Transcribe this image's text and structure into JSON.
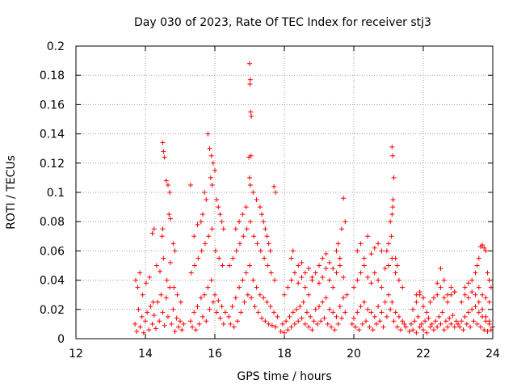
{
  "chart_data": {
    "type": "scatter",
    "title": "Day 030 of 2023, Rate Of TEC Index for receiver stj3",
    "xlabel": "GPS time / hours",
    "ylabel": "ROTI / TECUs",
    "xlim": [
      12,
      24
    ],
    "ylim": [
      0,
      0.2
    ],
    "x_ticks": [
      12,
      14,
      16,
      18,
      20,
      22,
      24
    ],
    "x_tick_labels": [
      "12",
      "14",
      "16",
      "18",
      "20",
      "22",
      "24"
    ],
    "y_ticks": [
      0,
      0.02,
      0.04,
      0.06,
      0.08,
      0.1,
      0.12,
      0.14,
      0.16,
      0.18,
      0.2
    ],
    "y_tick_labels": [
      "0",
      "0.02",
      "0.04",
      "0.06",
      "0.08",
      "0.1",
      "0.12",
      "0.14",
      "0.16",
      "0.18",
      "0.2"
    ],
    "grid": true,
    "marker": "+",
    "color": "#ff0000",
    "series": [
      {
        "x": [
          13.7,
          13.75,
          13.8,
          13.85,
          13.9,
          13.95,
          14.0,
          14.05,
          14.1,
          14.15,
          14.2,
          14.25,
          14.3,
          14.35,
          14.4,
          14.45,
          14.5,
          14.55,
          14.6,
          14.65,
          14.7,
          14.75,
          14.8,
          14.85,
          14.9,
          14.95,
          15.0,
          15.05,
          15.1,
          13.72,
          13.78,
          13.84,
          13.92,
          14.02,
          14.12,
          14.22,
          14.32,
          14.42,
          14.52,
          14.62,
          14.72,
          14.82,
          14.92,
          15.02,
          14.5,
          14.52,
          14.55,
          14.6,
          14.65,
          14.7,
          14.68,
          14.72,
          14.5,
          14.48,
          14.25,
          14.2,
          14.8,
          14.85,
          15.3,
          15.35,
          15.4,
          15.45,
          15.5,
          15.55,
          15.6,
          15.65,
          15.7,
          15.75,
          15.8,
          15.85,
          15.9,
          15.95,
          16.0,
          16.05,
          16.1,
          16.15,
          16.2,
          16.25,
          16.3,
          15.32,
          15.42,
          15.52,
          15.62,
          15.72,
          15.82,
          15.92,
          16.02,
          16.12,
          16.22,
          15.8,
          15.85,
          15.9,
          15.95,
          16.0,
          15.88,
          15.92,
          16.05,
          16.1,
          15.7,
          15.75,
          15.65,
          15.6,
          15.5,
          15.4,
          15.3,
          16.15,
          16.2,
          16.25,
          16.4,
          16.45,
          16.5,
          16.55,
          16.6,
          16.65,
          16.7,
          16.75,
          16.8,
          16.85,
          16.9,
          16.95,
          17.0,
          17.05,
          17.1,
          17.15,
          17.2,
          17.25,
          17.3,
          17.35,
          17.4,
          17.45,
          17.5,
          17.55,
          17.6,
          17.65,
          17.7,
          17.75,
          17.8,
          16.42,
          16.52,
          16.62,
          16.72,
          16.82,
          16.92,
          17.02,
          17.12,
          17.22,
          17.32,
          17.42,
          17.52,
          17.62,
          17.72,
          17.0,
          17.02,
          17.01,
          17.03,
          17.05,
          17.04,
          16.98,
          17.0,
          17.02,
          16.9,
          16.8,
          16.7,
          16.6,
          17.1,
          17.2,
          17.3,
          17.35,
          17.4,
          17.45,
          17.5,
          17.55,
          17.6,
          17.7,
          17.75,
          17.9,
          17.95,
          18.0,
          18.05,
          18.1,
          18.15,
          18.2,
          18.25,
          18.3,
          18.35,
          18.4,
          18.45,
          18.5,
          18.55,
          18.6,
          18.65,
          18.7,
          18.75,
          18.8,
          18.85,
          18.9,
          18.95,
          19.0,
          19.05,
          19.1,
          19.15,
          19.2,
          19.25,
          19.3,
          19.35,
          19.4,
          19.45,
          19.5,
          19.55,
          19.6,
          19.65,
          19.7,
          19.75,
          19.8,
          18.0,
          18.1,
          18.2,
          18.3,
          18.4,
          18.5,
          18.6,
          18.7,
          18.8,
          18.9,
          19.0,
          19.1,
          19.2,
          19.3,
          19.4,
          19.5,
          19.6,
          19.7,
          18.2,
          18.25,
          18.4,
          18.5,
          18.6,
          18.7,
          18.8,
          19.0,
          19.1,
          19.2,
          19.3,
          19.4,
          19.5,
          19.55,
          19.6,
          19.65,
          19.7,
          19.75,
          19.95,
          20.0,
          20.05,
          20.1,
          20.15,
          20.2,
          20.25,
          20.3,
          20.35,
          20.4,
          20.45,
          20.5,
          20.55,
          20.6,
          20.65,
          20.7,
          20.75,
          20.8,
          20.85,
          20.9,
          20.95,
          21.0,
          21.05,
          21.1,
          21.15,
          21.2,
          21.25,
          21.3,
          21.35,
          21.4,
          21.45,
          21.5,
          20.0,
          20.1,
          20.2,
          20.3,
          20.4,
          20.5,
          20.6,
          20.7,
          20.8,
          20.9,
          21.0,
          21.1,
          21.2,
          21.3,
          21.4,
          20.1,
          20.2,
          20.3,
          20.4,
          20.5,
          20.6,
          21.1,
          21.12,
          21.15,
          21.13,
          21.12,
          21.1,
          21.05,
          21.08,
          21.0,
          20.95,
          21.2,
          21.25,
          20.7,
          20.8,
          21.6,
          21.65,
          21.7,
          21.75,
          21.8,
          21.85,
          21.9,
          21.95,
          22.0,
          22.05,
          22.1,
          22.15,
          22.2,
          22.25,
          22.3,
          22.35,
          22.4,
          22.45,
          22.5,
          22.55,
          22.6,
          22.65,
          22.7,
          22.75,
          22.8,
          22.85,
          22.9,
          22.95,
          23.0,
          21.7,
          21.8,
          21.9,
          22.0,
          22.1,
          22.2,
          22.3,
          22.4,
          22.5,
          22.6,
          22.7,
          22.8,
          22.9,
          21.8,
          21.9,
          22.0,
          22.4,
          22.5,
          22.6,
          22.7,
          22.8,
          22.9,
          23.05,
          23.1,
          23.15,
          23.2,
          23.25,
          23.3,
          23.35,
          23.4,
          23.45,
          23.5,
          23.55,
          23.6,
          23.65,
          23.7,
          23.75,
          23.8,
          23.85,
          23.9,
          23.95,
          24.0,
          23.1,
          23.2,
          23.3,
          23.4,
          23.5,
          23.6,
          23.7,
          23.8,
          23.9,
          23.2,
          23.3,
          23.4,
          23.5,
          23.55,
          23.6,
          23.65,
          23.7,
          23.75,
          23.8,
          23.85,
          23.9,
          23.95,
          23.6,
          23.7,
          23.8,
          23.9
        ],
        "y": [
          0.01,
          0.005,
          0.02,
          0.008,
          0.015,
          0.004,
          0.012,
          0.018,
          0.006,
          0.022,
          0.01,
          0.016,
          0.007,
          0.025,
          0.012,
          0.03,
          0.018,
          0.009,
          0.028,
          0.015,
          0.035,
          0.01,
          0.02,
          0.005,
          0.014,
          0.008,
          0.012,
          0.006,
          0.01,
          0.04,
          0.035,
          0.045,
          0.03,
          0.038,
          0.042,
          0.025,
          0.05,
          0.046,
          0.055,
          0.04,
          0.052,
          0.035,
          0.03,
          0.025,
          0.134,
          0.128,
          0.124,
          0.108,
          0.105,
          0.1,
          0.085,
          0.082,
          0.075,
          0.07,
          0.075,
          0.072,
          0.065,
          0.06,
          0.012,
          0.008,
          0.018,
          0.006,
          0.022,
          0.01,
          0.028,
          0.015,
          0.03,
          0.012,
          0.035,
          0.02,
          0.04,
          0.025,
          0.03,
          0.018,
          0.026,
          0.014,
          0.022,
          0.01,
          0.018,
          0.045,
          0.05,
          0.055,
          0.06,
          0.065,
          0.07,
          0.075,
          0.06,
          0.055,
          0.05,
          0.14,
          0.13,
          0.125,
          0.12,
          0.115,
          0.11,
          0.105,
          0.095,
          0.09,
          0.1,
          0.095,
          0.085,
          0.08,
          0.078,
          0.07,
          0.105,
          0.085,
          0.08,
          0.075,
          0.015,
          0.01,
          0.022,
          0.008,
          0.028,
          0.012,
          0.035,
          0.018,
          0.04,
          0.025,
          0.045,
          0.03,
          0.05,
          0.028,
          0.04,
          0.022,
          0.035,
          0.018,
          0.03,
          0.014,
          0.028,
          0.012,
          0.025,
          0.01,
          0.022,
          0.009,
          0.018,
          0.008,
          0.015,
          0.05,
          0.055,
          0.06,
          0.065,
          0.07,
          0.075,
          0.08,
          0.07,
          0.065,
          0.06,
          0.055,
          0.05,
          0.045,
          0.04,
          0.188,
          0.177,
          0.174,
          0.155,
          0.152,
          0.125,
          0.124,
          0.11,
          0.105,
          0.09,
          0.085,
          0.08,
          0.075,
          0.1,
          0.095,
          0.09,
          0.085,
          0.08,
          0.075,
          0.07,
          0.065,
          0.06,
          0.104,
          0.1,
          0.005,
          0.01,
          0.004,
          0.012,
          0.006,
          0.015,
          0.008,
          0.018,
          0.01,
          0.02,
          0.012,
          0.022,
          0.014,
          0.025,
          0.01,
          0.018,
          0.008,
          0.015,
          0.006,
          0.012,
          0.02,
          0.01,
          0.022,
          0.012,
          0.025,
          0.014,
          0.028,
          0.01,
          0.02,
          0.008,
          0.018,
          0.006,
          0.015,
          0.01,
          0.022,
          0.014,
          0.028,
          0.018,
          0.03,
          0.03,
          0.035,
          0.04,
          0.045,
          0.038,
          0.042,
          0.035,
          0.03,
          0.04,
          0.045,
          0.038,
          0.042,
          0.048,
          0.04,
          0.035,
          0.045,
          0.05,
          0.042,
          0.055,
          0.06,
          0.05,
          0.052,
          0.045,
          0.048,
          0.042,
          0.05,
          0.055,
          0.058,
          0.052,
          0.048,
          0.06,
          0.065,
          0.055,
          0.075,
          0.096,
          0.08,
          0.01,
          0.014,
          0.008,
          0.018,
          0.006,
          0.022,
          0.01,
          0.025,
          0.012,
          0.02,
          0.008,
          0.018,
          0.006,
          0.015,
          0.01,
          0.022,
          0.012,
          0.018,
          0.008,
          0.025,
          0.015,
          0.03,
          0.02,
          0.025,
          0.012,
          0.018,
          0.008,
          0.015,
          0.006,
          0.012,
          0.01,
          0.008,
          0.035,
          0.04,
          0.045,
          0.05,
          0.042,
          0.038,
          0.045,
          0.04,
          0.035,
          0.048,
          0.05,
          0.055,
          0.045,
          0.04,
          0.035,
          0.06,
          0.065,
          0.055,
          0.07,
          0.058,
          0.062,
          0.131,
          0.125,
          0.11,
          0.095,
          0.09,
          0.085,
          0.08,
          0.07,
          0.065,
          0.06,
          0.055,
          0.05,
          0.065,
          0.06,
          0.005,
          0.01,
          0.006,
          0.012,
          0.004,
          0.015,
          0.008,
          0.01,
          0.006,
          0.012,
          0.004,
          0.014,
          0.008,
          0.01,
          0.006,
          0.012,
          0.008,
          0.015,
          0.01,
          0.018,
          0.006,
          0.012,
          0.008,
          0.014,
          0.01,
          0.016,
          0.008,
          0.012,
          0.01,
          0.02,
          0.025,
          0.03,
          0.022,
          0.018,
          0.025,
          0.028,
          0.03,
          0.035,
          0.028,
          0.025,
          0.03,
          0.032,
          0.03,
          0.032,
          0.028,
          0.038,
          0.048,
          0.04,
          0.03,
          0.035,
          0.032,
          0.008,
          0.012,
          0.006,
          0.015,
          0.01,
          0.018,
          0.008,
          0.02,
          0.012,
          0.022,
          0.01,
          0.018,
          0.008,
          0.015,
          0.006,
          0.012,
          0.005,
          0.01,
          0.006,
          0.008,
          0.025,
          0.03,
          0.028,
          0.032,
          0.03,
          0.035,
          0.03,
          0.028,
          0.025,
          0.035,
          0.038,
          0.04,
          0.045,
          0.05,
          0.055,
          0.063,
          0.064,
          0.062,
          0.06,
          0.045,
          0.04,
          0.035,
          0.025,
          0.02,
          0.015,
          0.012
        ]
      }
    ]
  }
}
